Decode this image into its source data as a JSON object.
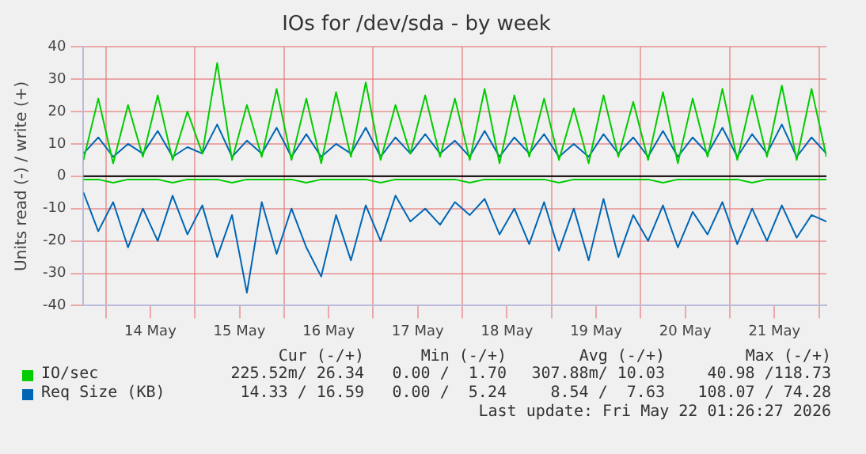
{
  "chart_data": {
    "type": "line",
    "title": "IOs for /dev/sda - by week",
    "ylabel": "Units read (-) / write (+)",
    "x": [
      "2026-05-13T18:00",
      "2026-05-13T22:00",
      "2026-05-14T02:00",
      "2026-05-14T06:00",
      "2026-05-14T10:00",
      "2026-05-14T14:00",
      "2026-05-14T18:00",
      "2026-05-14T22:00",
      "2026-05-15T02:00",
      "2026-05-15T06:00",
      "2026-05-15T10:00",
      "2026-05-15T14:00",
      "2026-05-15T18:00",
      "2026-05-15T22:00",
      "2026-05-16T02:00",
      "2026-05-16T06:00",
      "2026-05-16T10:00",
      "2026-05-16T14:00",
      "2026-05-16T18:00",
      "2026-05-16T22:00",
      "2026-05-17T02:00",
      "2026-05-17T06:00",
      "2026-05-17T10:00",
      "2026-05-17T14:00",
      "2026-05-17T18:00",
      "2026-05-17T22:00",
      "2026-05-18T02:00",
      "2026-05-18T06:00",
      "2026-05-18T10:00",
      "2026-05-18T14:00",
      "2026-05-18T18:00",
      "2026-05-18T22:00",
      "2026-05-19T02:00",
      "2026-05-19T06:00",
      "2026-05-19T10:00",
      "2026-05-19T14:00",
      "2026-05-19T18:00",
      "2026-05-19T22:00",
      "2026-05-20T02:00",
      "2026-05-20T06:00",
      "2026-05-20T10:00",
      "2026-05-20T14:00",
      "2026-05-20T18:00",
      "2026-05-20T22:00",
      "2026-05-21T02:00",
      "2026-05-21T06:00",
      "2026-05-21T10:00",
      "2026-05-21T14:00",
      "2026-05-21T18:00",
      "2026-05-21T22:00",
      "2026-05-22T02:00"
    ],
    "series": [
      {
        "name": "IO/sec",
        "color": "#00cc00",
        "values": [
          5,
          24,
          4,
          22,
          6,
          25,
          5,
          20,
          7,
          35,
          5,
          22,
          6,
          27,
          5,
          24,
          4,
          26,
          6,
          29,
          5,
          22,
          7,
          25,
          6,
          24,
          5,
          27,
          4,
          25,
          6,
          24,
          5,
          21,
          4,
          25,
          6,
          23,
          5,
          26,
          4,
          24,
          6,
          27,
          5,
          25,
          6,
          28,
          5,
          27,
          6
        ]
      },
      {
        "name": "Req Size (KB)",
        "color": "#0066b3",
        "values": [
          7,
          12,
          6,
          10,
          7,
          14,
          6,
          9,
          7,
          16,
          6,
          11,
          7,
          15,
          6,
          13,
          6,
          10,
          7,
          15,
          6,
          12,
          7,
          13,
          7,
          11,
          6,
          14,
          6,
          12,
          7,
          13,
          6,
          10,
          6,
          13,
          7,
          12,
          6,
          14,
          6,
          12,
          7,
          15,
          6,
          13,
          7,
          16,
          6,
          12,
          7
        ]
      },
      {
        "color": "#00cc00",
        "values": [
          -1,
          -1,
          -2,
          -1,
          -1,
          -1,
          -2,
          -1,
          -1,
          -1,
          -2,
          -1,
          -1,
          -1,
          -1,
          -2,
          -1,
          -1,
          -1,
          -1,
          -2,
          -1,
          -1,
          -1,
          -1,
          -1,
          -2,
          -1,
          -1,
          -1,
          -1,
          -1,
          -2,
          -1,
          -1,
          -1,
          -1,
          -1,
          -1,
          -2,
          -1,
          -1,
          -1,
          -1,
          -1,
          -2,
          -1,
          -1,
          -1,
          -1,
          -1
        ]
      },
      {
        "color": "#0066b3",
        "values": [
          -5,
          -17,
          -8,
          -22,
          -10,
          -20,
          -6,
          -18,
          -9,
          -25,
          -12,
          -36,
          -8,
          -24,
          -10,
          -22,
          -31,
          -12,
          -26,
          -9,
          -20,
          -6,
          -14,
          -10,
          -15,
          -8,
          -12,
          -7,
          -18,
          -10,
          -21,
          -8,
          -23,
          -10,
          -26,
          -7,
          -25,
          -12,
          -20,
          -9,
          -22,
          -11,
          -18,
          -8,
          -21,
          -10,
          -20,
          -9,
          -19,
          -12,
          -14
        ]
      }
    ],
    "xlim": [
      "2026-05-13T18:00",
      "2026-05-22T02:00"
    ],
    "xticks": [
      {
        "value": "2026-05-14T00:00",
        "label": null
      },
      {
        "value": "2026-05-14T12:00",
        "label": "14 May"
      },
      {
        "value": "2026-05-15T00:00",
        "label": null
      },
      {
        "value": "2026-05-15T12:00",
        "label": "15 May"
      },
      {
        "value": "2026-05-16T00:00",
        "label": null
      },
      {
        "value": "2026-05-16T12:00",
        "label": "16 May"
      },
      {
        "value": "2026-05-17T00:00",
        "label": null
      },
      {
        "value": "2026-05-17T12:00",
        "label": "17 May"
      },
      {
        "value": "2026-05-18T00:00",
        "label": null
      },
      {
        "value": "2026-05-18T12:00",
        "label": "18 May"
      },
      {
        "value": "2026-05-19T00:00",
        "label": null
      },
      {
        "value": "2026-05-19T12:00",
        "label": "19 May"
      },
      {
        "value": "2026-05-20T00:00",
        "label": null
      },
      {
        "value": "2026-05-20T12:00",
        "label": "20 May"
      },
      {
        "value": "2026-05-21T00:00",
        "label": null
      },
      {
        "value": "2026-05-21T12:00",
        "label": "21 May"
      },
      {
        "value": "2026-05-22T00:00",
        "label": null
      }
    ],
    "ylim": [
      -40,
      40
    ],
    "yticks": [
      -40,
      -30,
      -20,
      -10,
      0,
      10,
      20,
      30,
      40
    ],
    "ref_lines": [
      {
        "axis": "y",
        "value": 0,
        "color": "#000000"
      }
    ],
    "grid": true,
    "legend": "bottom",
    "marker": "none",
    "line_style": "solid",
    "annotations": [
      "Cur (-/+)",
      "Min (-/+)",
      "Avg (-/+)",
      "Max (-/+)",
      "225.52m/ 26.34",
      "0.00 /  1.70",
      "307.88m/ 10.03",
      "40.98 /118.73",
      "14.33 / 16.59",
      "0.00 /  5.24",
      "8.54 /  7.63",
      "108.07 / 74.28",
      "Last update: Fri May 22 01:26:27 2026"
    ]
  }
}
